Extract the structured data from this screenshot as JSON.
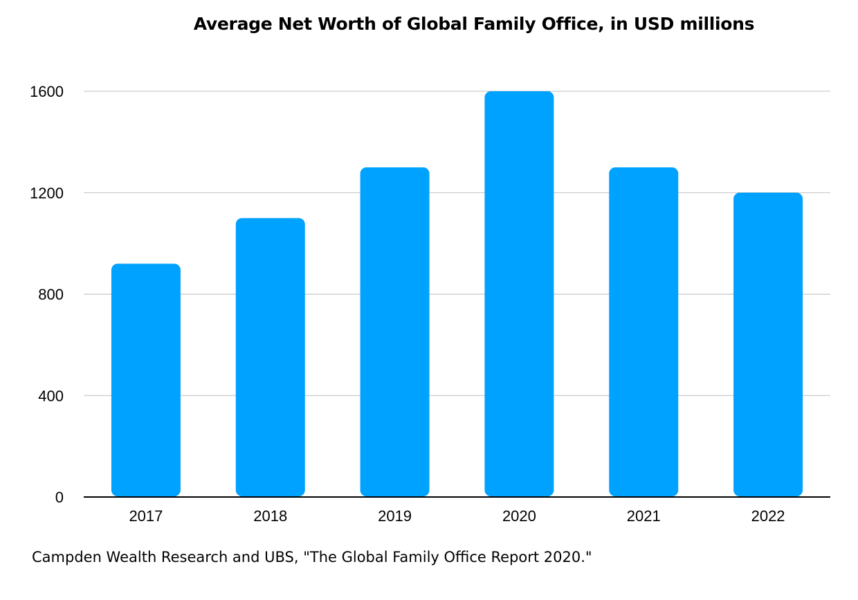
{
  "chart_data": {
    "type": "bar",
    "title": "Average Net Worth of Global Family Office, in USD millions",
    "categories": [
      "2017",
      "2018",
      "2019",
      "2020",
      "2021",
      "2022"
    ],
    "values": [
      920,
      1100,
      1300,
      1600,
      1300,
      1200
    ],
    "xlabel": "",
    "ylabel": "",
    "ylim": [
      0,
      1600
    ],
    "yticks": [
      0,
      400,
      800,
      1200,
      1600
    ],
    "grid": true,
    "legend": "none",
    "bar_color": "#00A2FF",
    "grid_color": "#BFBFBF",
    "axis_color": "#000000"
  },
  "source_note": "Campden Wealth Research and UBS, \"The Global Family Office Report 2020.\""
}
